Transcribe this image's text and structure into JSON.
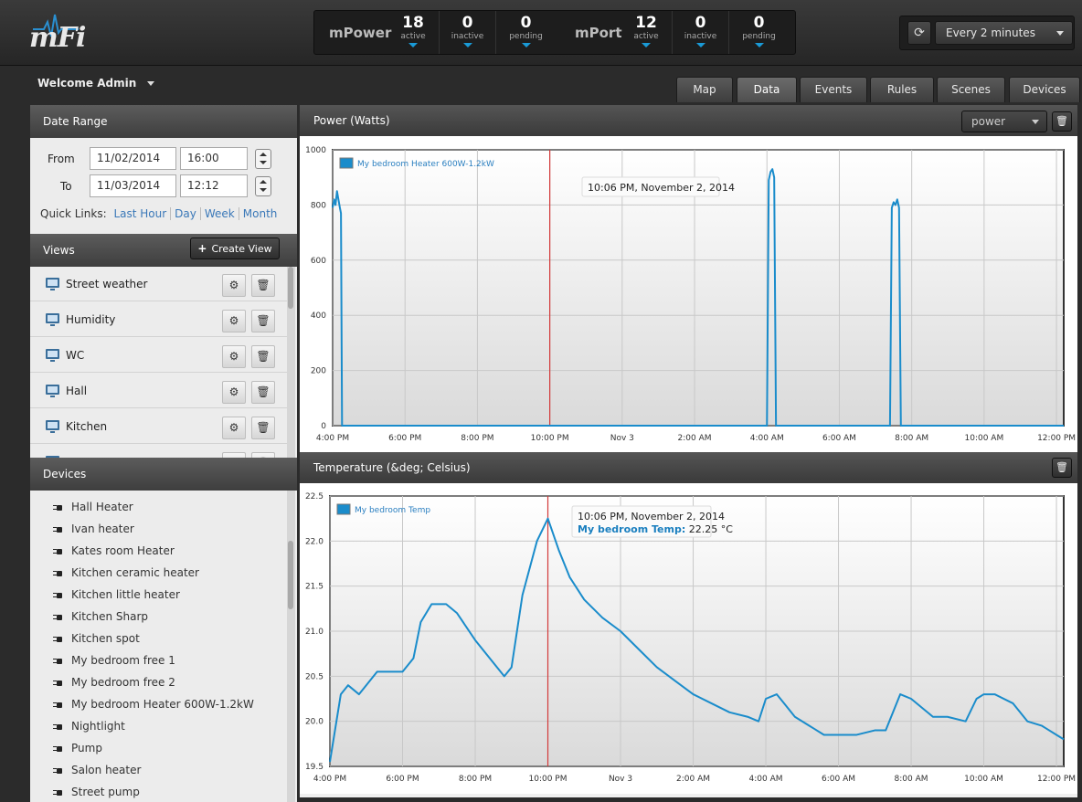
{
  "app": {
    "logo_text": "mFi"
  },
  "stats": {
    "mpower": {
      "label": "mPower",
      "active": "18",
      "active_label": "active",
      "inactive": "0",
      "inactive_label": "inactive",
      "pending": "0",
      "pending_label": "pending"
    },
    "mport": {
      "label": "mPort",
      "active": "12",
      "active_label": "active",
      "inactive": "0",
      "inactive_label": "inactive",
      "pending": "0",
      "pending_label": "pending"
    }
  },
  "refresh": {
    "interval": "Every 2 minutes",
    "icon": "refresh-icon"
  },
  "welcome": "Welcome Admin",
  "tabs": [
    {
      "label": "Map"
    },
    {
      "label": "Data",
      "active": true
    },
    {
      "label": "Events"
    },
    {
      "label": "Rules"
    },
    {
      "label": "Scenes"
    },
    {
      "label": "Devices"
    }
  ],
  "date_range": {
    "title": "Date Range",
    "from_label": "From",
    "from_date": "11/02/2014",
    "from_time": "16:00",
    "to_label": "To",
    "to_date": "11/03/2014",
    "to_time": "12:12",
    "quick_label": "Quick Links:",
    "quick_links": [
      "Last Hour",
      "Day",
      "Week",
      "Month"
    ]
  },
  "views": {
    "title": "Views",
    "create_label": "Create View",
    "items": [
      "Street weather",
      "Humidity",
      "WC",
      "Hall",
      "Kitchen"
    ]
  },
  "devices": {
    "title": "Devices",
    "items": [
      "Hall Heater",
      "Ivan heater",
      "Kates room Heater",
      "Kitchen ceramic heater",
      "Kitchen little heater",
      "Kitchen Sharp",
      "Kitchen spot",
      "My bedroom free 1",
      "My bedroom free 2",
      "My bedroom Heater 600W-1.2kW",
      "Nightlight",
      "Pump",
      "Salon heater",
      "Street pump"
    ]
  },
  "colors": {
    "series": "#1a8ccb",
    "cursor": "#d33a3a",
    "accent": "#1a9ad6"
  },
  "chart_data": [
    {
      "type": "line",
      "title": "Power (Watts)",
      "selector": "power",
      "xlabel": "",
      "ylabel": "",
      "x_ticks": [
        "4:00 PM",
        "6:00 PM",
        "8:00 PM",
        "10:00 PM",
        "Nov 3",
        "2:00 AM",
        "4:00 AM",
        "6:00 AM",
        "8:00 AM",
        "10:00 AM",
        "12:00 PM"
      ],
      "ylim": [
        0,
        1000
      ],
      "y_ticks": [
        "0",
        "200",
        "400",
        "600",
        "800",
        "1000"
      ],
      "grid": true,
      "legend_position": "top-left",
      "cursor": {
        "x_hours": 6.0,
        "label": "10:06 PM, November 2, 2014"
      },
      "series": [
        {
          "name": "My bedroom Heater 600W-1.2kW",
          "x_hours": [
            0,
            0.04,
            0.08,
            0.12,
            0.16,
            0.2,
            0.23,
            0.26,
            0.27,
            0.3,
            12.0,
            12.05,
            12.1,
            12.15,
            12.2,
            12.25,
            12.3,
            15.4,
            15.45,
            15.5,
            15.55,
            15.6,
            15.65,
            15.7,
            20.2
          ],
          "values": [
            790,
            820,
            800,
            850,
            820,
            790,
            770,
            0,
            0,
            0,
            0,
            890,
            920,
            930,
            900,
            0,
            0,
            0,
            790,
            810,
            800,
            820,
            790,
            0,
            0
          ]
        }
      ]
    },
    {
      "type": "line",
      "title": "Temperature (&deg; Celsius)",
      "xlabel": "",
      "ylabel": "",
      "x_ticks": [
        "4:00 PM",
        "6:00 PM",
        "8:00 PM",
        "10:00 PM",
        "Nov 3",
        "2:00 AM",
        "4:00 AM",
        "6:00 AM",
        "8:00 AM",
        "10:00 AM",
        "12:00 PM"
      ],
      "ylim": [
        19.5,
        22.5
      ],
      "y_ticks": [
        "19.5",
        "20.0",
        "20.5",
        "21.0",
        "21.5",
        "22.0",
        "22.5"
      ],
      "grid": true,
      "legend_position": "top-left",
      "cursor": {
        "x_hours": 6.0,
        "label": "10:06 PM, November 2, 2014",
        "series_label": "My bedroom Temp",
        "value_text": "22.25 °C"
      },
      "series": [
        {
          "name": "My bedroom Temp",
          "x_hours": [
            0,
            0.3,
            0.5,
            0.8,
            1.0,
            1.3,
            1.6,
            2.0,
            2.3,
            2.5,
            2.8,
            3.2,
            3.5,
            4.0,
            4.4,
            4.8,
            5.0,
            5.3,
            5.7,
            6.0,
            6.3,
            6.6,
            7.0,
            7.5,
            8.0,
            8.5,
            9.0,
            9.5,
            10.0,
            10.5,
            11.0,
            11.5,
            11.8,
            12.0,
            12.3,
            12.5,
            12.8,
            13.2,
            13.6,
            14.0,
            14.5,
            15.0,
            15.3,
            15.7,
            16.0,
            16.3,
            16.6,
            17.0,
            17.5,
            17.8,
            18.0,
            18.3,
            18.8,
            19.2,
            19.6,
            20.0,
            20.2
          ],
          "values": [
            19.55,
            20.3,
            20.4,
            20.3,
            20.4,
            20.55,
            20.55,
            20.55,
            20.7,
            21.1,
            21.3,
            21.3,
            21.2,
            20.9,
            20.7,
            20.5,
            20.6,
            21.4,
            22.0,
            22.25,
            21.9,
            21.6,
            21.35,
            21.15,
            21.0,
            20.8,
            20.6,
            20.45,
            20.3,
            20.2,
            20.1,
            20.05,
            20.0,
            20.25,
            20.3,
            20.2,
            20.05,
            19.95,
            19.85,
            19.85,
            19.85,
            19.9,
            19.9,
            20.3,
            20.25,
            20.15,
            20.05,
            20.05,
            20.0,
            20.25,
            20.3,
            20.3,
            20.2,
            20.0,
            19.95,
            19.85,
            19.8
          ]
        }
      ]
    }
  ]
}
